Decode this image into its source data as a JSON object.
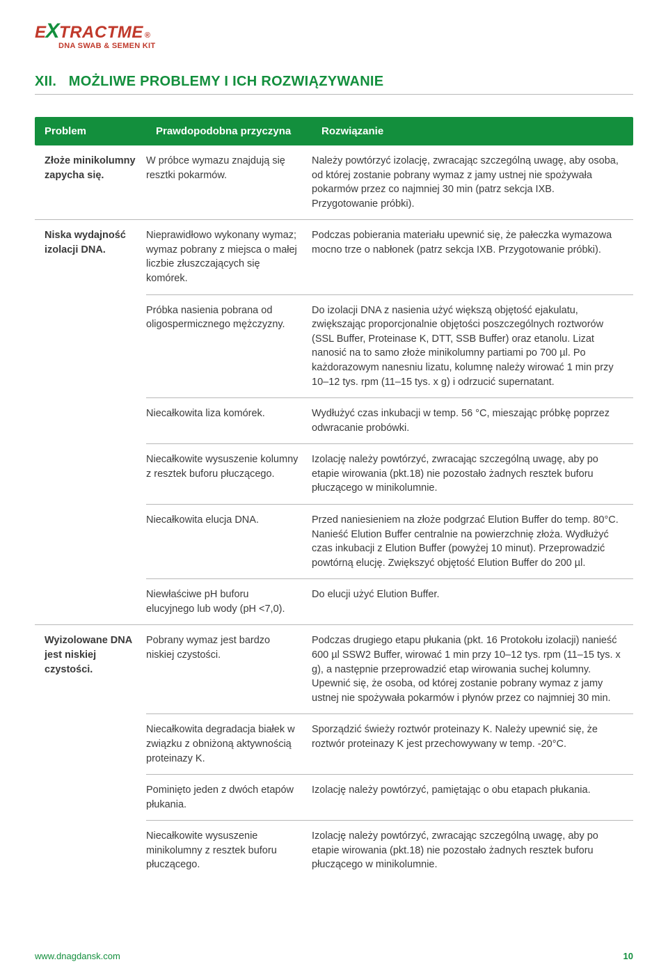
{
  "brand": {
    "logo_prefix": "E",
    "logo_accent": "X",
    "logo_suffix": "TRACTME",
    "logo_reg": "®",
    "logo_sub": "DNA SWAB & SEMEN KIT",
    "accent_red": "#c0392b",
    "accent_green": "#138f3d"
  },
  "section": {
    "number": "XII.",
    "title": "MOŻLIWE PROBLEMY I ICH ROZWIĄZYWANIE"
  },
  "table": {
    "head": {
      "problem": "Problem",
      "cause": "Prawdopodobna przyczyna",
      "solution": "Rozwiązanie"
    },
    "groups": [
      {
        "problem": "Złoże minikolumny zapycha się.",
        "rows": [
          {
            "cause": "W próbce wymazu znajdują się resztki pokarmów.",
            "solution": "Należy powtórzyć izolację, zwracając szczególną uwagę, aby osoba, od której zostanie pobrany wymaz z jamy ustnej nie spożywała pokarmów przez co najmniej 30 min (patrz sekcja IXB. Przygotowanie próbki)."
          }
        ]
      },
      {
        "problem": "Niska wydajność izolacji DNA.",
        "rows": [
          {
            "cause": "Nieprawidłowo wykonany wymaz; wymaz pobrany z miejsca o małej liczbie złuszczających się komórek.",
            "solution": "Podczas pobierania materiału upewnić się, że pałeczka wymazowa mocno trze o nabłonek (patrz sekcja IXB. Przygotowanie próbki)."
          },
          {
            "cause": "Próbka nasienia pobrana od oligospermicznego mężczyzny.",
            "solution": "Do izolacji DNA z nasienia użyć większą objętość ejakulatu, zwiększając proporcjonalnie objętości poszczególnych roztworów (SSL Buffer, Proteinase K, DTT, SSB Buffer) oraz etanolu. Lizat nanosić na to samo złoże minikolumny partiami po 700 µl. Po każdorazowym nanesniu lizatu, kolumnę należy wirować 1 min przy 10–12 tys. rpm (11–15 tys. x g) i odrzucić supernatant."
          },
          {
            "cause": "Niecałkowita liza komórek.",
            "solution": "Wydłużyć czas inkubacji w temp. 56 °C, mieszając próbkę poprzez odwracanie probówki."
          },
          {
            "cause": "Niecałkowite wysuszenie kolumny z resztek buforu płuczącego.",
            "solution": "Izolację należy powtórzyć, zwracając szczególną uwagę, aby po etapie wirowania (pkt.18) nie pozostało żadnych resztek buforu płuczącego w minikolumnie."
          },
          {
            "cause": "Niecałkowita elucja DNA.",
            "solution": "Przed naniesieniem na złoże podgrzać Elution Buffer do temp. 80°C. Nanieść Elution Buffer centralnie na powierzchnię złoża. Wydłużyć czas inkubacji z Elution Buffer (powyżej 10 minut). Przeprowadzić powtórną elucję. Zwiększyć objętość Elution Buffer do 200 µl."
          },
          {
            "cause": "Niewłaściwe pH buforu elucyjnego lub wody (pH <7,0).",
            "solution": "Do elucji użyć Elution Buffer."
          }
        ]
      },
      {
        "problem": "Wyizolowane DNA jest niskiej czystości.",
        "rows": [
          {
            "cause": "Pobrany wymaz jest bardzo niskiej czystości.",
            "solution": "Podczas drugiego etapu płukania (pkt. 16 Protokołu izolacji) nanieść 600 µl SSW2 Buffer, wirować 1 min przy 10–12 tys. rpm (11–15 tys. x g), a następnie przeprowadzić etap wirowania suchej kolumny. Upewnić się, że osoba, od której zostanie pobrany wymaz z jamy ustnej nie spożywała pokarmów i płynów przez co najmniej 30 min."
          },
          {
            "cause": "Niecałkowita degradacja białek w związku z obniżoną aktywnością proteinazy K.",
            "solution": "Sporządzić świeży roztwór proteinazy K. Należy upewnić się, że roztwór proteinazy K jest przechowywany w temp. -20°C."
          },
          {
            "cause": "Pominięto jeden z dwóch etapów płukania.",
            "solution": "Izolację należy powtórzyć, pamiętając o obu etapach płukania."
          },
          {
            "cause": "Niecałkowite wysuszenie minikolumny z resztek buforu płuczącego.",
            "solution": "Izolację należy powtórzyć, zwracając szczególną uwagę, aby po etapie wirowania (pkt.18) nie pozostało żadnych resztek buforu płuczącego w minikolumnie."
          }
        ]
      }
    ]
  },
  "footer": {
    "url": "www.dnagdansk.com",
    "page": "10"
  }
}
